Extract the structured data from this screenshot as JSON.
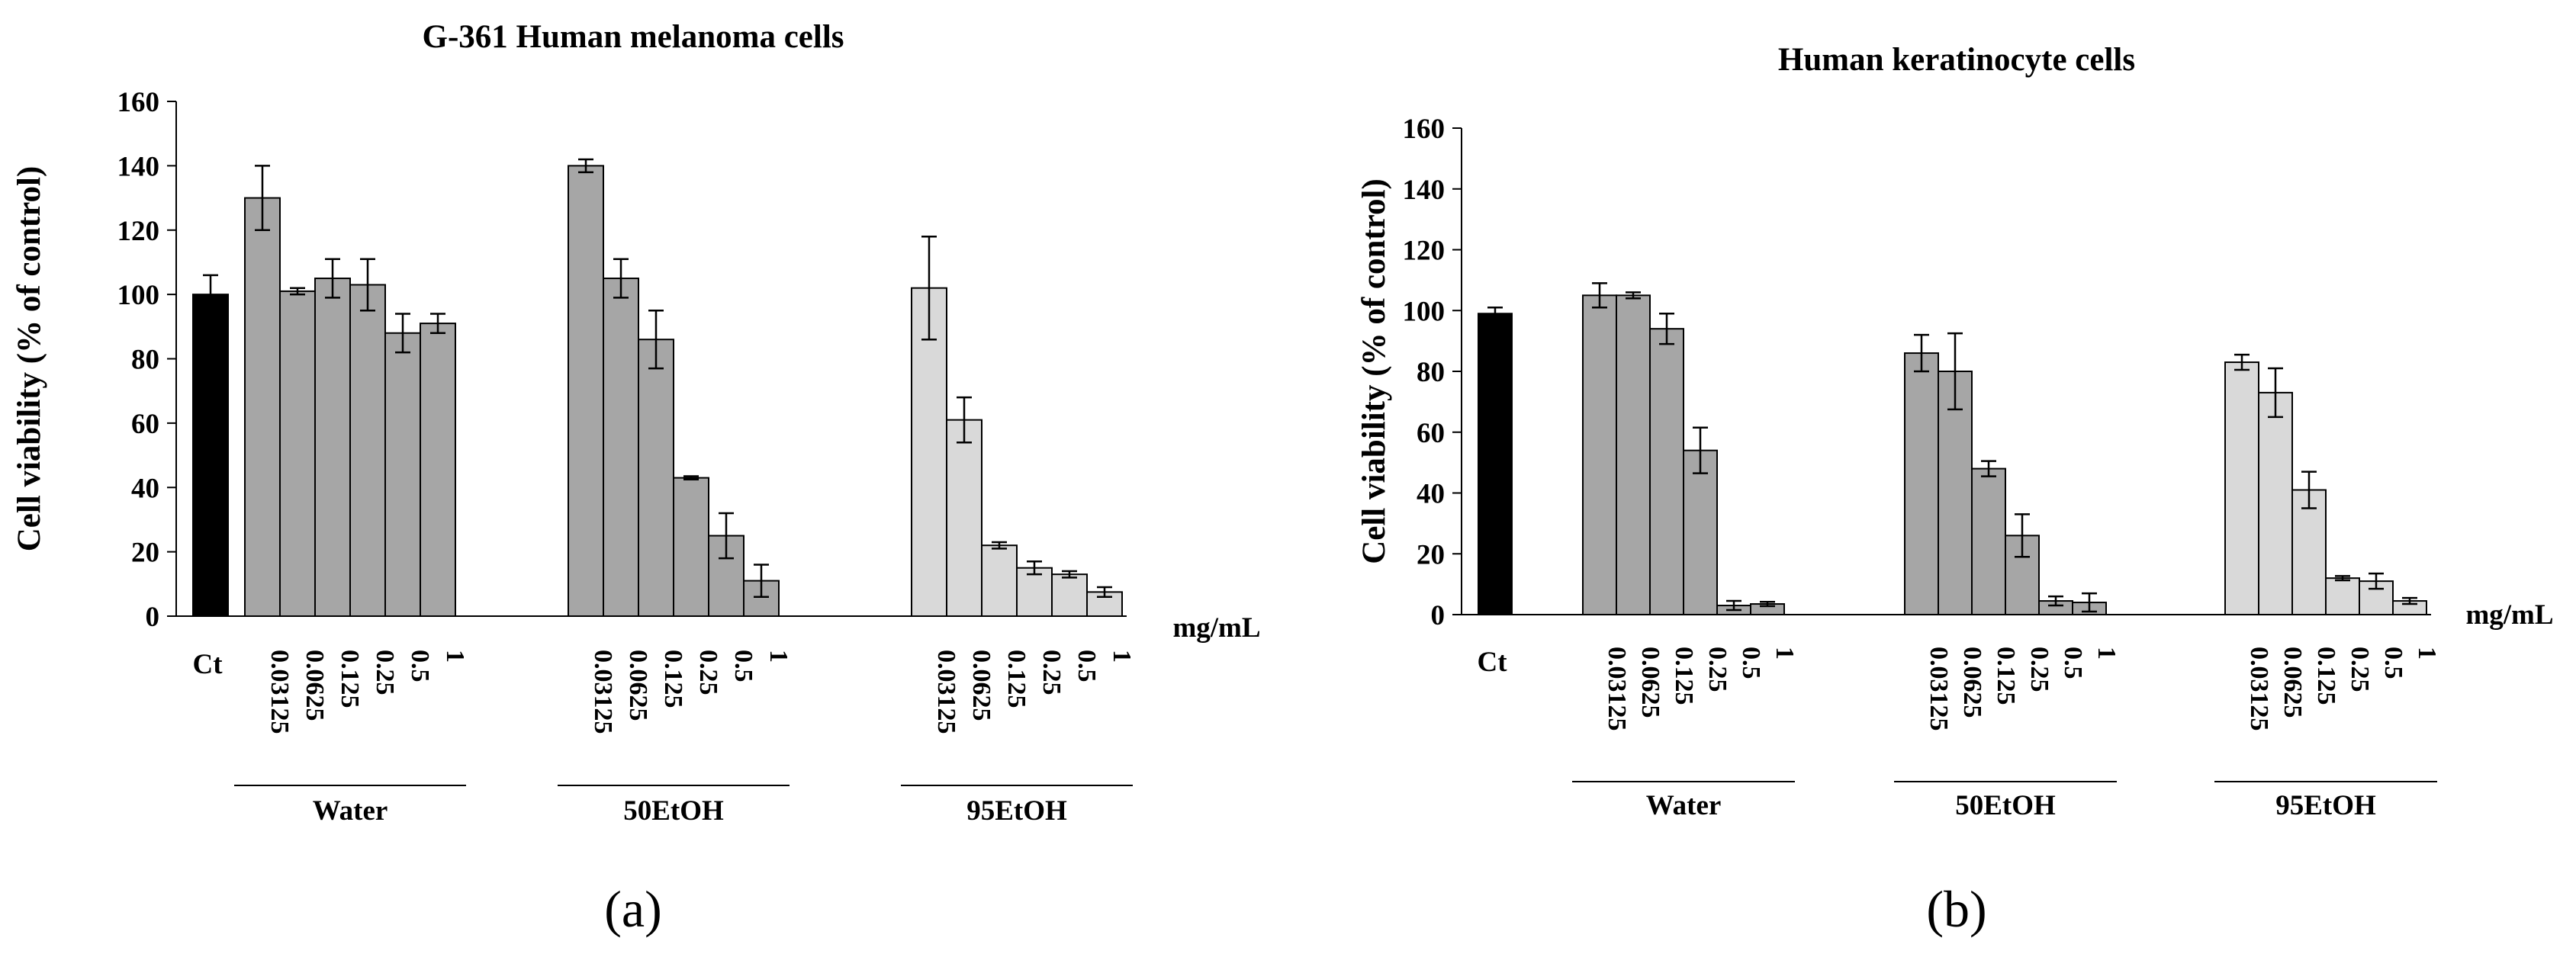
{
  "chart_data": [
    {
      "type": "bar",
      "panel_label": "(a)",
      "title": "G-361 Human melanoma cells",
      "ylabel": "Cell viability (% of control)",
      "xlabel": "",
      "unit_label": "mg/mL",
      "ylim": [
        0,
        160
      ],
      "yticks": [
        0,
        20,
        40,
        60,
        80,
        100,
        120,
        140,
        160
      ],
      "grid": false,
      "control": {
        "label": "Ct",
        "value": 100,
        "error": 6,
        "color": "#000000"
      },
      "groups": [
        {
          "name": "Water",
          "color": "#a6a6a6",
          "concentrations": [
            "0.03125",
            "0.0625",
            "0.125",
            "0.25",
            "0.5",
            "1"
          ],
          "values": [
            130,
            101,
            105,
            103,
            88,
            91
          ],
          "errors": [
            10,
            1,
            6,
            8,
            6,
            3
          ]
        },
        {
          "name": "50EtOH",
          "color": "#a6a6a6",
          "concentrations": [
            "0.03125",
            "0.0625",
            "0.125",
            "0.25",
            "0.5",
            "1"
          ],
          "values": [
            140,
            105,
            86,
            43,
            25,
            11
          ],
          "errors": [
            2,
            6,
            9,
            0.5,
            7,
            5
          ]
        },
        {
          "name": "95EtOH",
          "color": "#d9d9d9",
          "concentrations": [
            "0.03125",
            "0.0625",
            "0.125",
            "0.25",
            "0.5",
            "1"
          ],
          "values": [
            102,
            61,
            22,
            15,
            13,
            7.5
          ],
          "errors": [
            16,
            7,
            1,
            2,
            1,
            1.5
          ]
        }
      ]
    },
    {
      "type": "bar",
      "panel_label": "(b)",
      "title": "Human keratinocyte cells",
      "ylabel": "Cell viability (% of control)",
      "xlabel": "",
      "unit_label": "mg/mL",
      "ylim": [
        0,
        160
      ],
      "yticks": [
        0,
        20,
        40,
        60,
        80,
        100,
        120,
        140,
        160
      ],
      "grid": false,
      "control": {
        "label": "Ct",
        "value": 99,
        "error": 2,
        "color": "#000000"
      },
      "groups": [
        {
          "name": "Water",
          "color": "#a6a6a6",
          "concentrations": [
            "0.03125",
            "0.0625",
            "0.125",
            "0.25",
            "0.5",
            "1"
          ],
          "values": [
            105,
            105,
            94,
            54,
            3,
            3.5
          ],
          "errors": [
            4,
            1,
            5,
            7.5,
            1.5,
            0.7
          ]
        },
        {
          "name": "50EtOH",
          "color": "#a6a6a6",
          "concentrations": [
            "0.03125",
            "0.0625",
            "0.125",
            "0.25",
            "0.5",
            "1"
          ],
          "values": [
            86,
            80,
            48,
            26,
            4.5,
            4
          ],
          "errors": [
            6,
            12.5,
            2.5,
            7,
            1.5,
            3
          ]
        },
        {
          "name": "95EtOH",
          "color": "#d9d9d9",
          "concentrations": [
            "0.03125",
            "0.0625",
            "0.125",
            "0.25",
            "0.5",
            "1"
          ],
          "values": [
            83,
            73,
            41,
            12,
            11,
            4.5
          ],
          "errors": [
            2.5,
            8,
            6,
            0.7,
            2.5,
            1
          ]
        }
      ]
    }
  ]
}
